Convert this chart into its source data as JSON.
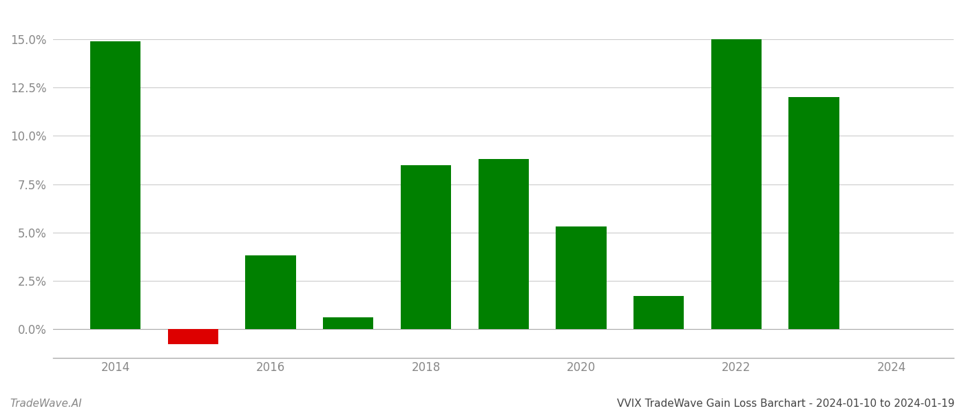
{
  "years": [
    2014,
    2015,
    2016,
    2017,
    2018,
    2019,
    2020,
    2021,
    2022,
    2023
  ],
  "values": [
    0.149,
    -0.008,
    0.038,
    0.006,
    0.085,
    0.088,
    0.053,
    0.017,
    0.15,
    0.12
  ],
  "bar_colors": [
    "#008000",
    "#dd0000",
    "#008000",
    "#008000",
    "#008000",
    "#008000",
    "#008000",
    "#008000",
    "#008000",
    "#008000"
  ],
  "title": "VVIX TradeWave Gain Loss Barchart - 2024-01-10 to 2024-01-19",
  "watermark": "TradeWave.AI",
  "ylim": [
    -0.015,
    0.165
  ],
  "ytick_values": [
    0.0,
    0.025,
    0.05,
    0.075,
    0.1,
    0.125,
    0.15
  ],
  "xtick_values": [
    2014,
    2016,
    2018,
    2020,
    2022,
    2024
  ],
  "bar_width": 0.65,
  "background_color": "#ffffff",
  "grid_color": "#cccccc",
  "axis_label_color": "#888888",
  "title_color": "#444444",
  "watermark_color": "#888888",
  "spine_color": "#aaaaaa"
}
